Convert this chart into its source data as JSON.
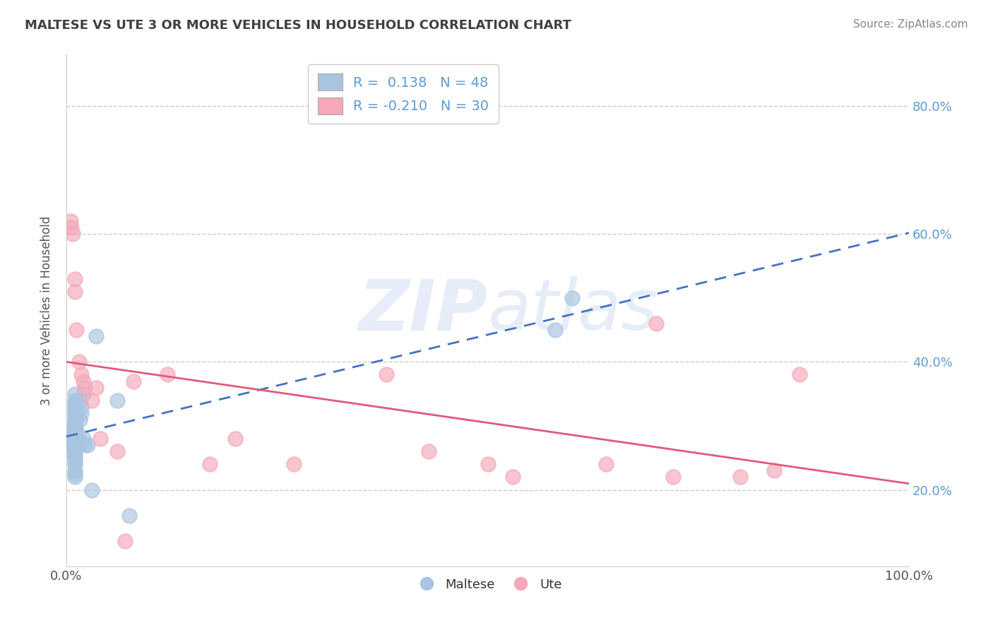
{
  "title": "MALTESE VS UTE 3 OR MORE VEHICLES IN HOUSEHOLD CORRELATION CHART",
  "source": "Source: ZipAtlas.com",
  "ylabel": "3 or more Vehicles in Household",
  "watermark": "ZIPatlas",
  "xlim": [
    0.0,
    1.0
  ],
  "ylim": [
    0.08,
    0.88
  ],
  "xtick_labels": [
    "0.0%",
    "100.0%"
  ],
  "ytick_labels": [
    "20.0%",
    "40.0%",
    "60.0%",
    "80.0%"
  ],
  "ytick_values": [
    0.2,
    0.4,
    0.6,
    0.8
  ],
  "legend_r_maltese": "0.138",
  "legend_n_maltese": "48",
  "legend_r_ute": "-0.210",
  "legend_n_ute": "30",
  "maltese_color": "#a8c4e0",
  "ute_color": "#f4a8b8",
  "trendline_maltese_color": "#4472c4",
  "trendline_ute_color": "#e05a7a",
  "background_color": "#ffffff",
  "grid_color": "#cccccc",
  "maltese_x": [
    0.005,
    0.006,
    0.007,
    0.008,
    0.009,
    0.01,
    0.01,
    0.01,
    0.01,
    0.01,
    0.01,
    0.01,
    0.01,
    0.01,
    0.01,
    0.01,
    0.01,
    0.01,
    0.01,
    0.01,
    0.01,
    0.01,
    0.01,
    0.01,
    0.01,
    0.01,
    0.01,
    0.01,
    0.01,
    0.01,
    0.012,
    0.013,
    0.015,
    0.015,
    0.015,
    0.016,
    0.018,
    0.018,
    0.02,
    0.02,
    0.022,
    0.025,
    0.03,
    0.035,
    0.06,
    0.075,
    0.58,
    0.6
  ],
  "maltese_y": [
    0.26,
    0.27,
    0.28,
    0.29,
    0.3,
    0.22,
    0.225,
    0.23,
    0.24,
    0.245,
    0.25,
    0.255,
    0.26,
    0.265,
    0.27,
    0.275,
    0.28,
    0.285,
    0.29,
    0.295,
    0.3,
    0.305,
    0.31,
    0.315,
    0.32,
    0.325,
    0.33,
    0.335,
    0.34,
    0.35,
    0.28,
    0.29,
    0.27,
    0.28,
    0.34,
    0.31,
    0.32,
    0.33,
    0.35,
    0.28,
    0.27,
    0.27,
    0.2,
    0.44,
    0.34,
    0.16,
    0.45,
    0.5
  ],
  "ute_x": [
    0.005,
    0.006,
    0.008,
    0.01,
    0.01,
    0.012,
    0.015,
    0.018,
    0.02,
    0.022,
    0.03,
    0.035,
    0.04,
    0.06,
    0.07,
    0.08,
    0.12,
    0.17,
    0.2,
    0.27,
    0.38,
    0.43,
    0.5,
    0.53,
    0.64,
    0.7,
    0.72,
    0.8,
    0.84,
    0.87
  ],
  "ute_y": [
    0.62,
    0.61,
    0.6,
    0.53,
    0.51,
    0.45,
    0.4,
    0.38,
    0.37,
    0.36,
    0.34,
    0.36,
    0.28,
    0.26,
    0.12,
    0.37,
    0.38,
    0.24,
    0.28,
    0.24,
    0.38,
    0.26,
    0.24,
    0.22,
    0.24,
    0.46,
    0.22,
    0.22,
    0.23,
    0.38
  ]
}
